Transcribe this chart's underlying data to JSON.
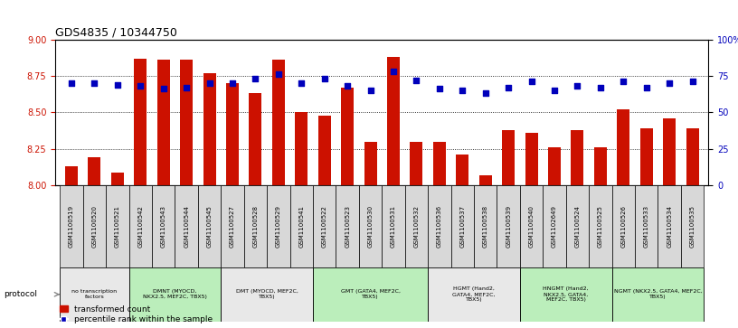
{
  "title": "GDS4835 / 10344750",
  "samples": [
    "GSM1100519",
    "GSM1100520",
    "GSM1100521",
    "GSM1100542",
    "GSM1100543",
    "GSM1100544",
    "GSM1100545",
    "GSM1100527",
    "GSM1100528",
    "GSM1100529",
    "GSM1100541",
    "GSM1100522",
    "GSM1100523",
    "GSM1100530",
    "GSM1100531",
    "GSM1100532",
    "GSM1100536",
    "GSM1100537",
    "GSM1100538",
    "GSM1100539",
    "GSM1100540",
    "GSM1102649",
    "GSM1100524",
    "GSM1100525",
    "GSM1100526",
    "GSM1100533",
    "GSM1100534",
    "GSM1100535"
  ],
  "bar_values": [
    8.13,
    8.19,
    8.09,
    8.87,
    8.86,
    8.86,
    8.77,
    8.7,
    8.63,
    8.86,
    8.5,
    8.48,
    8.67,
    8.3,
    8.88,
    8.3,
    8.3,
    8.21,
    8.07,
    8.38,
    8.36,
    8.26,
    8.38,
    8.26,
    8.52,
    8.39,
    8.46,
    8.39
  ],
  "percentile_values": [
    70,
    70,
    69,
    68,
    66,
    67,
    70,
    70,
    73,
    76,
    70,
    73,
    68,
    65,
    78,
    72,
    66,
    65,
    63,
    67,
    71,
    65,
    68,
    67,
    71,
    67,
    70,
    71
  ],
  "protocols": [
    {
      "label": "no transcription\nfactors",
      "start": 0,
      "end": 3,
      "color": "#e8e8e8"
    },
    {
      "label": "DMNT (MYOCD,\nNKX2.5, MEF2C, TBX5)",
      "start": 3,
      "end": 7,
      "color": "#bbeebb"
    },
    {
      "label": "DMT (MYOCD, MEF2C,\nTBX5)",
      "start": 7,
      "end": 11,
      "color": "#e8e8e8"
    },
    {
      "label": "GMT (GATA4, MEF2C,\nTBX5)",
      "start": 11,
      "end": 16,
      "color": "#bbeebb"
    },
    {
      "label": "HGMT (Hand2,\nGATA4, MEF2C,\nTBX5)",
      "start": 16,
      "end": 20,
      "color": "#e8e8e8"
    },
    {
      "label": "HNGMT (Hand2,\nNKX2.5, GATA4,\nMEF2C, TBX5)",
      "start": 20,
      "end": 24,
      "color": "#bbeebb"
    },
    {
      "label": "NGMT (NKX2.5, GATA4, MEF2C,\nTBX5)",
      "start": 24,
      "end": 28,
      "color": "#bbeebb"
    }
  ],
  "ylim_left": [
    8.0,
    9.0
  ],
  "ylim_right": [
    0,
    100
  ],
  "yticks_left": [
    8.0,
    8.25,
    8.5,
    8.75,
    9.0
  ],
  "yticks_right": [
    0,
    25,
    50,
    75,
    100
  ],
  "bar_color": "#cc1100",
  "dot_color": "#0000bb",
  "legend_items": [
    "transformed count",
    "percentile rank within the sample"
  ]
}
